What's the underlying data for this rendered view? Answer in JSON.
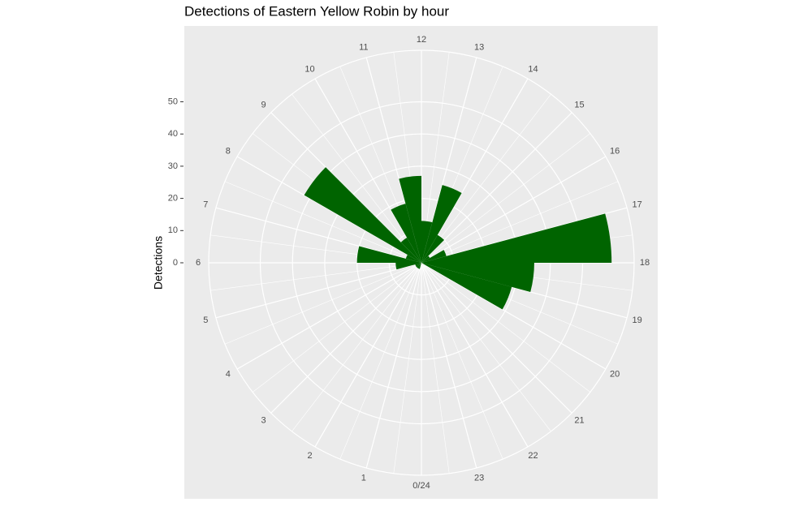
{
  "chart_data": {
    "type": "polar_bar",
    "title": "Detections of Eastern Yellow Robin by hour",
    "y_label": "Detections",
    "categories": [
      "0/24",
      "1",
      "2",
      "3",
      "4",
      "5",
      "6",
      "7",
      "8",
      "9",
      "10",
      "11",
      "12",
      "13",
      "14",
      "15",
      "16",
      "17",
      "18",
      "19",
      "20",
      "21",
      "22",
      "23"
    ],
    "values": [
      0,
      2,
      2,
      2,
      2,
      8,
      20,
      5,
      42,
      9,
      19,
      27,
      13,
      25,
      10,
      3,
      8,
      59,
      35,
      29,
      0,
      0,
      0,
      0
    ],
    "color": "#006400",
    "ylim": [
      0,
      66
    ],
    "yticks": [
      0,
      10,
      20,
      30,
      40,
      50
    ],
    "grid": true
  }
}
